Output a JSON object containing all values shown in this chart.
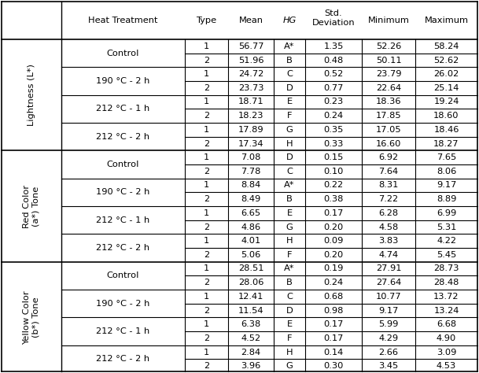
{
  "row_groups": [
    {
      "group_label": "Lightness (L*)",
      "treatments": [
        {
          "treatment": "Control",
          "rows": [
            [
              "1",
              "56.77",
              "A*",
              "1.35",
              "52.26",
              "58.24"
            ],
            [
              "2",
              "51.96",
              "B",
              "0.48",
              "50.11",
              "52.62"
            ]
          ]
        },
        {
          "treatment": "190 °C - 2 h",
          "rows": [
            [
              "1",
              "24.72",
              "C",
              "0.52",
              "23.79",
              "26.02"
            ],
            [
              "2",
              "23.73",
              "D",
              "0.77",
              "22.64",
              "25.14"
            ]
          ]
        },
        {
          "treatment": "212 °C - 1 h",
          "rows": [
            [
              "1",
              "18.71",
              "E",
              "0.23",
              "18.36",
              "19.24"
            ],
            [
              "2",
              "18.23",
              "F",
              "0.24",
              "17.85",
              "18.60"
            ]
          ]
        },
        {
          "treatment": "212 °C - 2 h",
          "rows": [
            [
              "1",
              "17.89",
              "G",
              "0.35",
              "17.05",
              "18.46"
            ],
            [
              "2",
              "17.34",
              "H",
              "0.33",
              "16.60",
              "18.27"
            ]
          ]
        }
      ]
    },
    {
      "group_label": "Red Color\n(a*) Tone",
      "treatments": [
        {
          "treatment": "Control",
          "rows": [
            [
              "1",
              "7.08",
              "D",
              "0.15",
              "6.92",
              "7.65"
            ],
            [
              "2",
              "7.78",
              "C",
              "0.10",
              "7.64",
              "8.06"
            ]
          ]
        },
        {
          "treatment": "190 °C - 2 h",
          "rows": [
            [
              "1",
              "8.84",
              "A*",
              "0.22",
              "8.31",
              "9.17"
            ],
            [
              "2",
              "8.49",
              "B",
              "0.38",
              "7.22",
              "8.89"
            ]
          ]
        },
        {
          "treatment": "212 °C - 1 h",
          "rows": [
            [
              "1",
              "6.65",
              "E",
              "0.17",
              "6.28",
              "6.99"
            ],
            [
              "2",
              "4.86",
              "G",
              "0.20",
              "4.58",
              "5.31"
            ]
          ]
        },
        {
          "treatment": "212 °C - 2 h",
          "rows": [
            [
              "1",
              "4.01",
              "H",
              "0.09",
              "3.83",
              "4.22"
            ],
            [
              "2",
              "5.06",
              "F",
              "0.20",
              "4.74",
              "5.45"
            ]
          ]
        }
      ]
    },
    {
      "group_label": "Yellow Color\n(b*) Tone",
      "treatments": [
        {
          "treatment": "Control",
          "rows": [
            [
              "1",
              "28.51",
              "A*",
              "0.19",
              "27.91",
              "28.73"
            ],
            [
              "2",
              "28.06",
              "B",
              "0.24",
              "27.64",
              "28.48"
            ]
          ]
        },
        {
          "treatment": "190 °C - 2 h",
          "rows": [
            [
              "1",
              "12.41",
              "C",
              "0.68",
              "10.77",
              "13.72"
            ],
            [
              "2",
              "11.54",
              "D",
              "0.98",
              "9.17",
              "13.24"
            ]
          ]
        },
        {
          "treatment": "212 °C - 1 h",
          "rows": [
            [
              "1",
              "6.38",
              "E",
              "0.17",
              "5.99",
              "6.68"
            ],
            [
              "2",
              "4.52",
              "F",
              "0.17",
              "4.29",
              "4.90"
            ]
          ]
        },
        {
          "treatment": "212 °C - 2 h",
          "rows": [
            [
              "1",
              "2.84",
              "H",
              "0.14",
              "2.66",
              "3.09"
            ],
            [
              "2",
              "3.96",
              "G",
              "0.30",
              "3.45",
              "4.53"
            ]
          ]
        }
      ]
    }
  ],
  "background_color": "#ffffff",
  "line_color": "#000000",
  "text_color": "#000000",
  "font_size": 8.2
}
